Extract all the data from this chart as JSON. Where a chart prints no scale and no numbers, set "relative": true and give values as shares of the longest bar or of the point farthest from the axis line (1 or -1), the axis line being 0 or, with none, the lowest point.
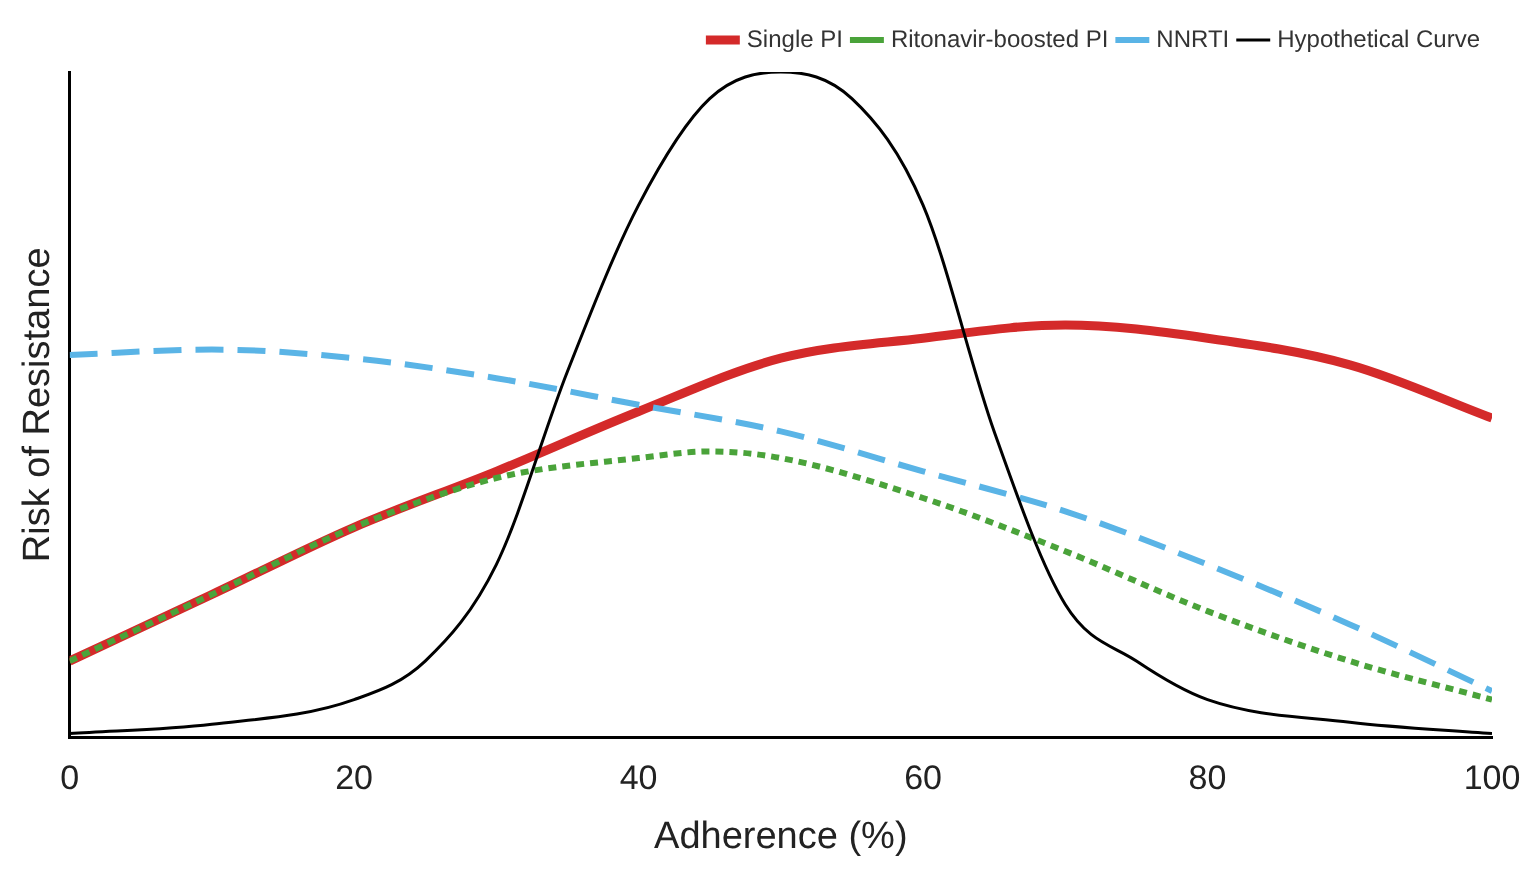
{
  "chart_data": {
    "type": "line",
    "relative": true,
    "xlabel": "Adherence (%)",
    "ylabel": "Risk of Resistance",
    "xlim": [
      0,
      100
    ],
    "xticks": [
      0,
      20,
      40,
      60,
      80,
      100
    ],
    "legend": "top right",
    "grid": false,
    "marker": "none",
    "series": [
      {
        "name": "Single PI",
        "color": "#d42a2a",
        "line_style": "solid",
        "x": [
          0,
          10,
          20,
          30,
          40,
          50,
          60,
          70,
          80,
          90,
          100
        ],
        "values": [
          0.115,
          0.215,
          0.316,
          0.4,
          0.49,
          0.57,
          0.6,
          0.62,
          0.6,
          0.56,
          0.48
        ]
      },
      {
        "name": "Ritonavir-boosted PI",
        "color": "#4aa33a",
        "line_style": "dotted",
        "x": [
          0,
          10,
          20,
          30,
          40,
          45,
          50,
          60,
          70,
          80,
          90,
          100
        ],
        "values": [
          0.115,
          0.215,
          0.316,
          0.39,
          0.42,
          0.43,
          0.42,
          0.36,
          0.28,
          0.19,
          0.115,
          0.057
        ]
      },
      {
        "name": "NNRTI",
        "color": "#5ab4e6",
        "line_style": "dashed",
        "x": [
          0,
          10,
          20,
          30,
          40,
          50,
          60,
          70,
          80,
          90,
          100
        ],
        "values": [
          0.575,
          0.583,
          0.57,
          0.54,
          0.5,
          0.46,
          0.4,
          0.34,
          0.26,
          0.17,
          0.07
        ]
      },
      {
        "name": "Hypothetical Curve",
        "color": "#000000",
        "line_style": "solid",
        "x": [
          0,
          10,
          20,
          25,
          30,
          35,
          40,
          45,
          50,
          55,
          60,
          65,
          70,
          75,
          80,
          90,
          100
        ],
        "values": [
          0.006,
          0.02,
          0.057,
          0.115,
          0.26,
          0.55,
          0.8,
          0.96,
          1,
          0.96,
          0.8,
          0.46,
          0.2,
          0.115,
          0.057,
          0.023,
          0.006
        ]
      }
    ]
  }
}
